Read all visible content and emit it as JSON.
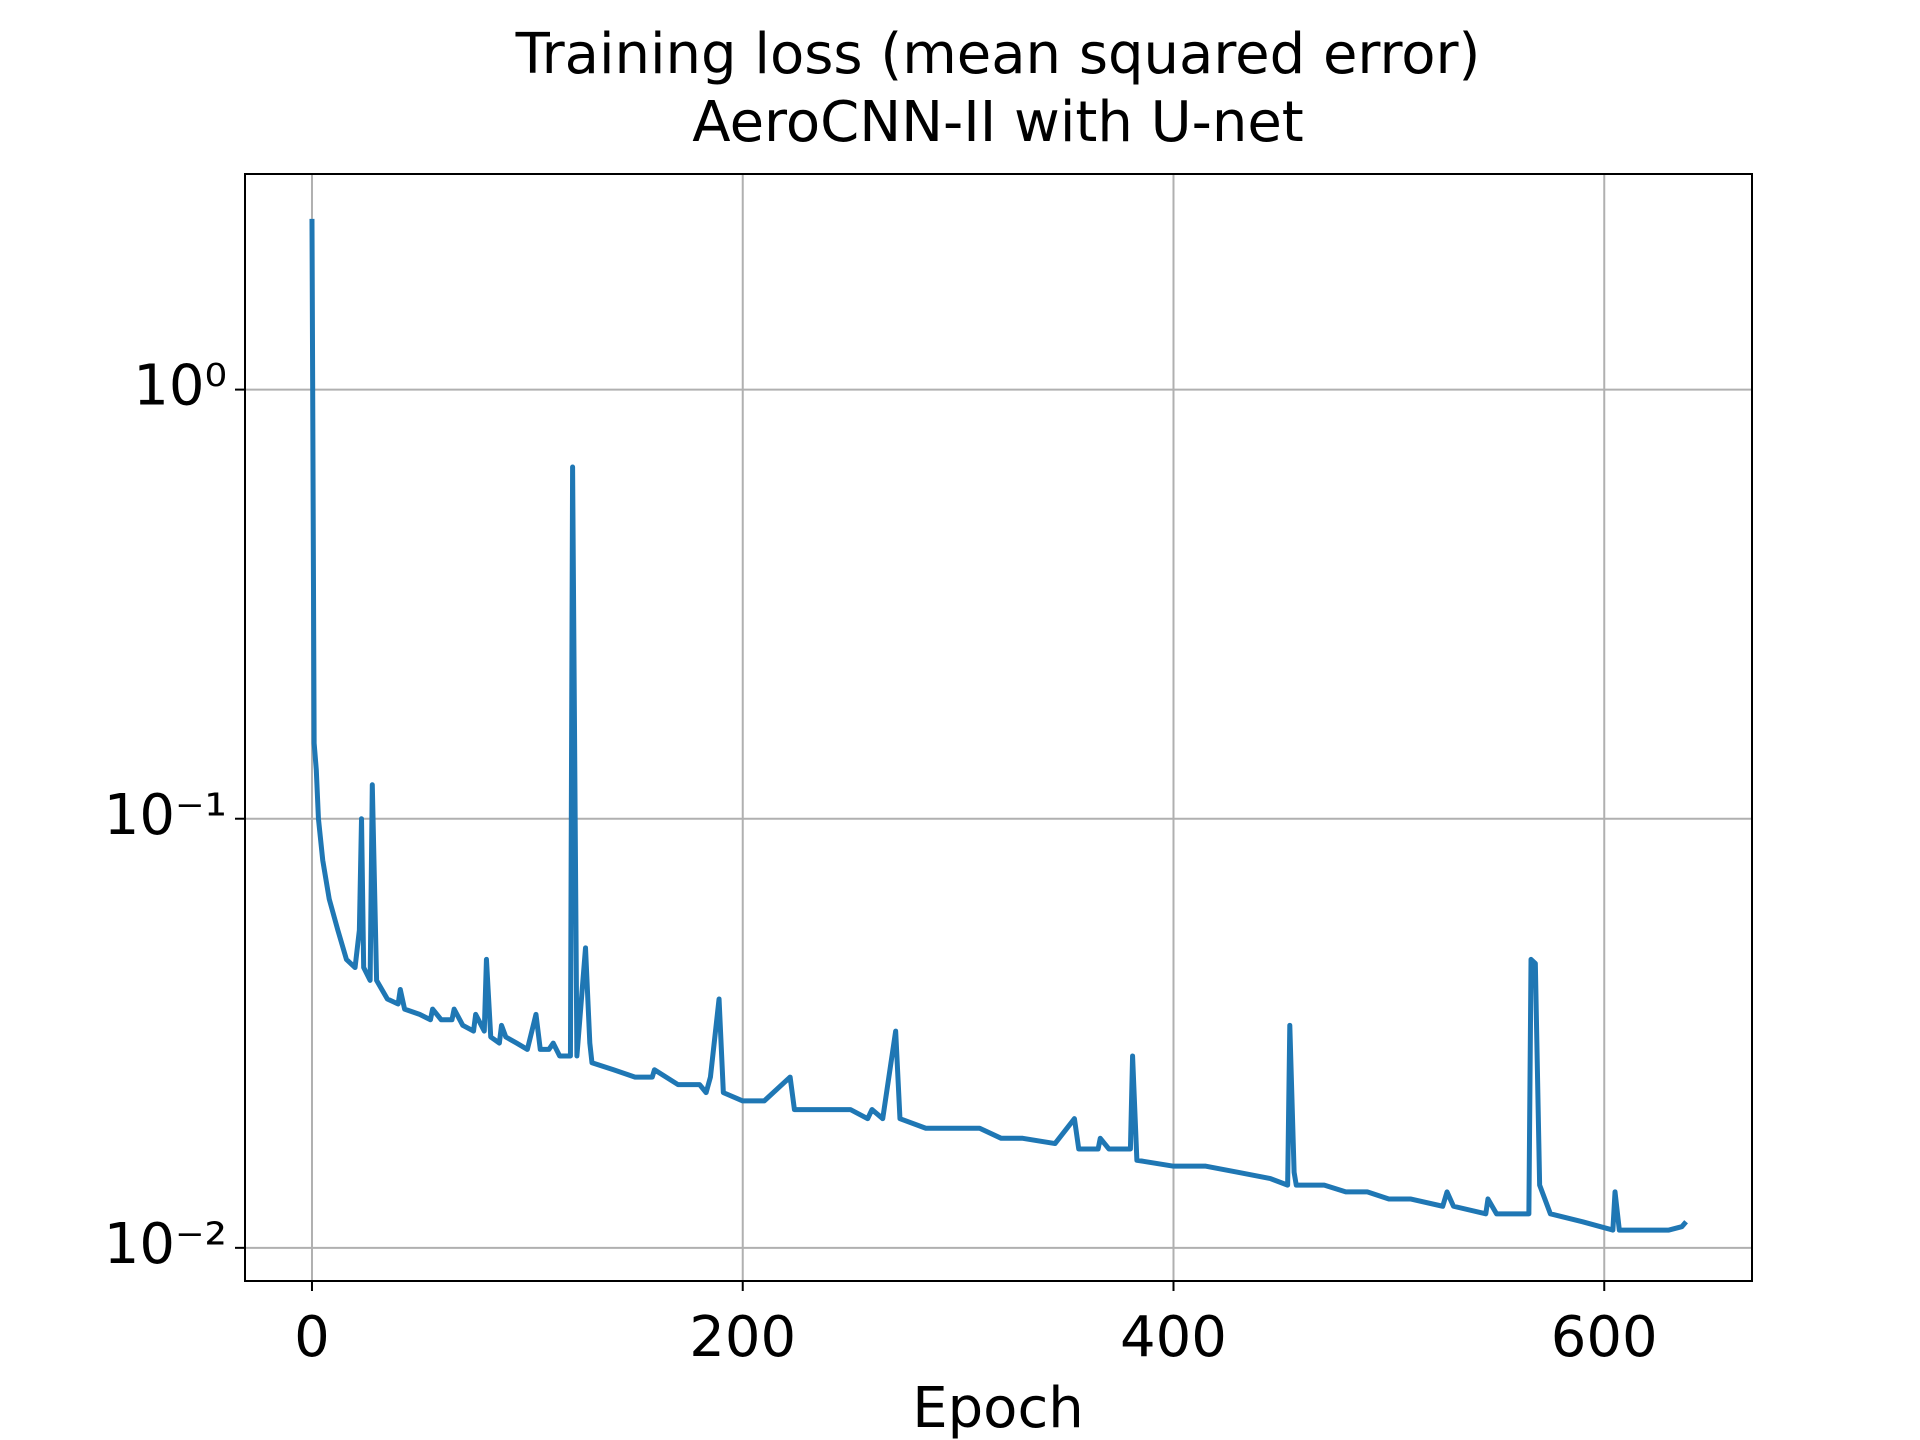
{
  "chart_data": {
    "type": "line",
    "title": "Training loss (mean squared error)",
    "subtitle": "AeroCNN-II with U-net",
    "x_label": "Epoch",
    "yscale": "log",
    "grid": true,
    "xlim": [
      -31.1,
      668.6
    ],
    "ylim": [
      0.00837,
      3.18
    ],
    "xticks": [
      0,
      200,
      400,
      600
    ],
    "yticks": [
      {
        "value": 1,
        "label": "10⁰"
      },
      {
        "value": 0.1,
        "label": "10⁻¹"
      },
      {
        "value": 0.01,
        "label": "10⁻²"
      }
    ],
    "x": [
      0,
      1,
      2,
      3,
      5,
      8,
      12,
      16,
      20,
      22,
      23,
      24,
      27,
      28,
      30,
      35,
      40,
      41,
      43,
      50,
      55,
      56,
      60,
      65,
      66,
      70,
      75,
      76,
      80,
      81,
      83,
      87,
      88,
      90,
      95,
      100,
      104,
      106,
      110,
      112,
      115,
      120,
      121,
      123,
      127,
      129,
      130,
      140,
      150,
      158,
      159,
      170,
      180,
      183,
      185,
      189,
      191,
      200,
      210,
      222,
      224,
      235,
      250,
      258,
      260,
      265,
      271,
      273,
      285,
      300,
      310,
      320,
      330,
      345,
      354,
      356,
      365,
      366,
      370,
      380,
      381,
      383,
      400,
      415,
      430,
      445,
      453,
      454,
      456,
      457,
      470,
      480,
      490,
      500,
      510,
      525,
      527,
      530,
      545,
      546,
      550,
      565,
      566,
      568,
      570,
      575,
      590,
      604,
      605,
      607,
      620,
      630,
      636,
      638
    ],
    "series": [
      {
        "name": "Training loss",
        "color": "#1f77b4",
        "values": [
          2.5,
          0.15,
          0.13,
          0.1,
          0.08,
          0.065,
          0.055,
          0.047,
          0.045,
          0.055,
          0.1,
          0.045,
          0.042,
          0.12,
          0.042,
          0.038,
          0.037,
          0.04,
          0.036,
          0.035,
          0.034,
          0.036,
          0.034,
          0.034,
          0.036,
          0.033,
          0.032,
          0.035,
          0.032,
          0.047,
          0.031,
          0.03,
          0.033,
          0.031,
          0.03,
          0.029,
          0.035,
          0.029,
          0.029,
          0.03,
          0.028,
          0.028,
          0.66,
          0.028,
          0.05,
          0.03,
          0.027,
          0.026,
          0.025,
          0.025,
          0.026,
          0.024,
          0.024,
          0.023,
          0.025,
          0.038,
          0.023,
          0.022,
          0.022,
          0.025,
          0.021,
          0.021,
          0.021,
          0.02,
          0.021,
          0.02,
          0.032,
          0.02,
          0.019,
          0.019,
          0.019,
          0.018,
          0.018,
          0.0175,
          0.02,
          0.017,
          0.017,
          0.018,
          0.017,
          0.017,
          0.028,
          0.016,
          0.0155,
          0.0155,
          0.015,
          0.0145,
          0.014,
          0.033,
          0.015,
          0.014,
          0.014,
          0.0135,
          0.0135,
          0.013,
          0.013,
          0.0125,
          0.0135,
          0.0125,
          0.012,
          0.013,
          0.012,
          0.012,
          0.047,
          0.046,
          0.014,
          0.012,
          0.0115,
          0.011,
          0.0135,
          0.011,
          0.011,
          0.011,
          0.0112,
          0.0115
        ]
      }
    ]
  }
}
